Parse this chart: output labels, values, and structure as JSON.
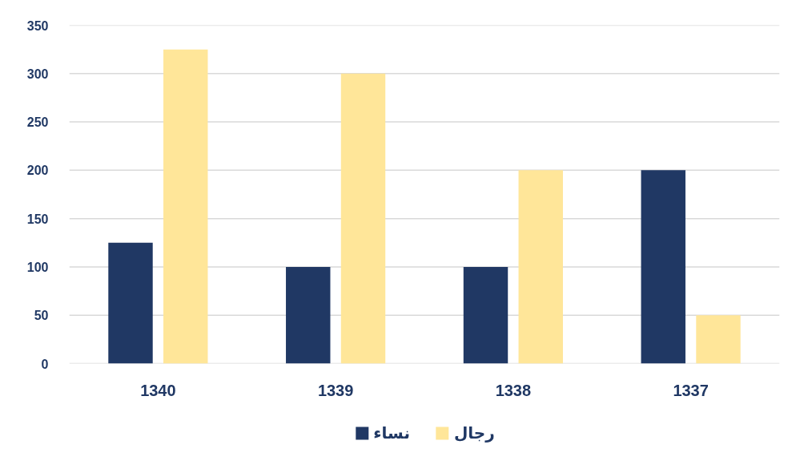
{
  "chart_data": {
    "type": "bar",
    "categories": [
      "1340",
      "1339",
      "1338",
      "1337"
    ],
    "series": [
      {
        "name": "نساء",
        "color": "#203864",
        "values": [
          125,
          100,
          100,
          200
        ]
      },
      {
        "name": "رجال",
        "color": "#ffe699",
        "values": [
          325,
          300,
          200,
          50
        ]
      }
    ],
    "ylim": [
      0,
      350
    ],
    "yticks": [
      0,
      50,
      100,
      150,
      200,
      250,
      300,
      350
    ],
    "grid": "y",
    "legend": "bottom"
  }
}
